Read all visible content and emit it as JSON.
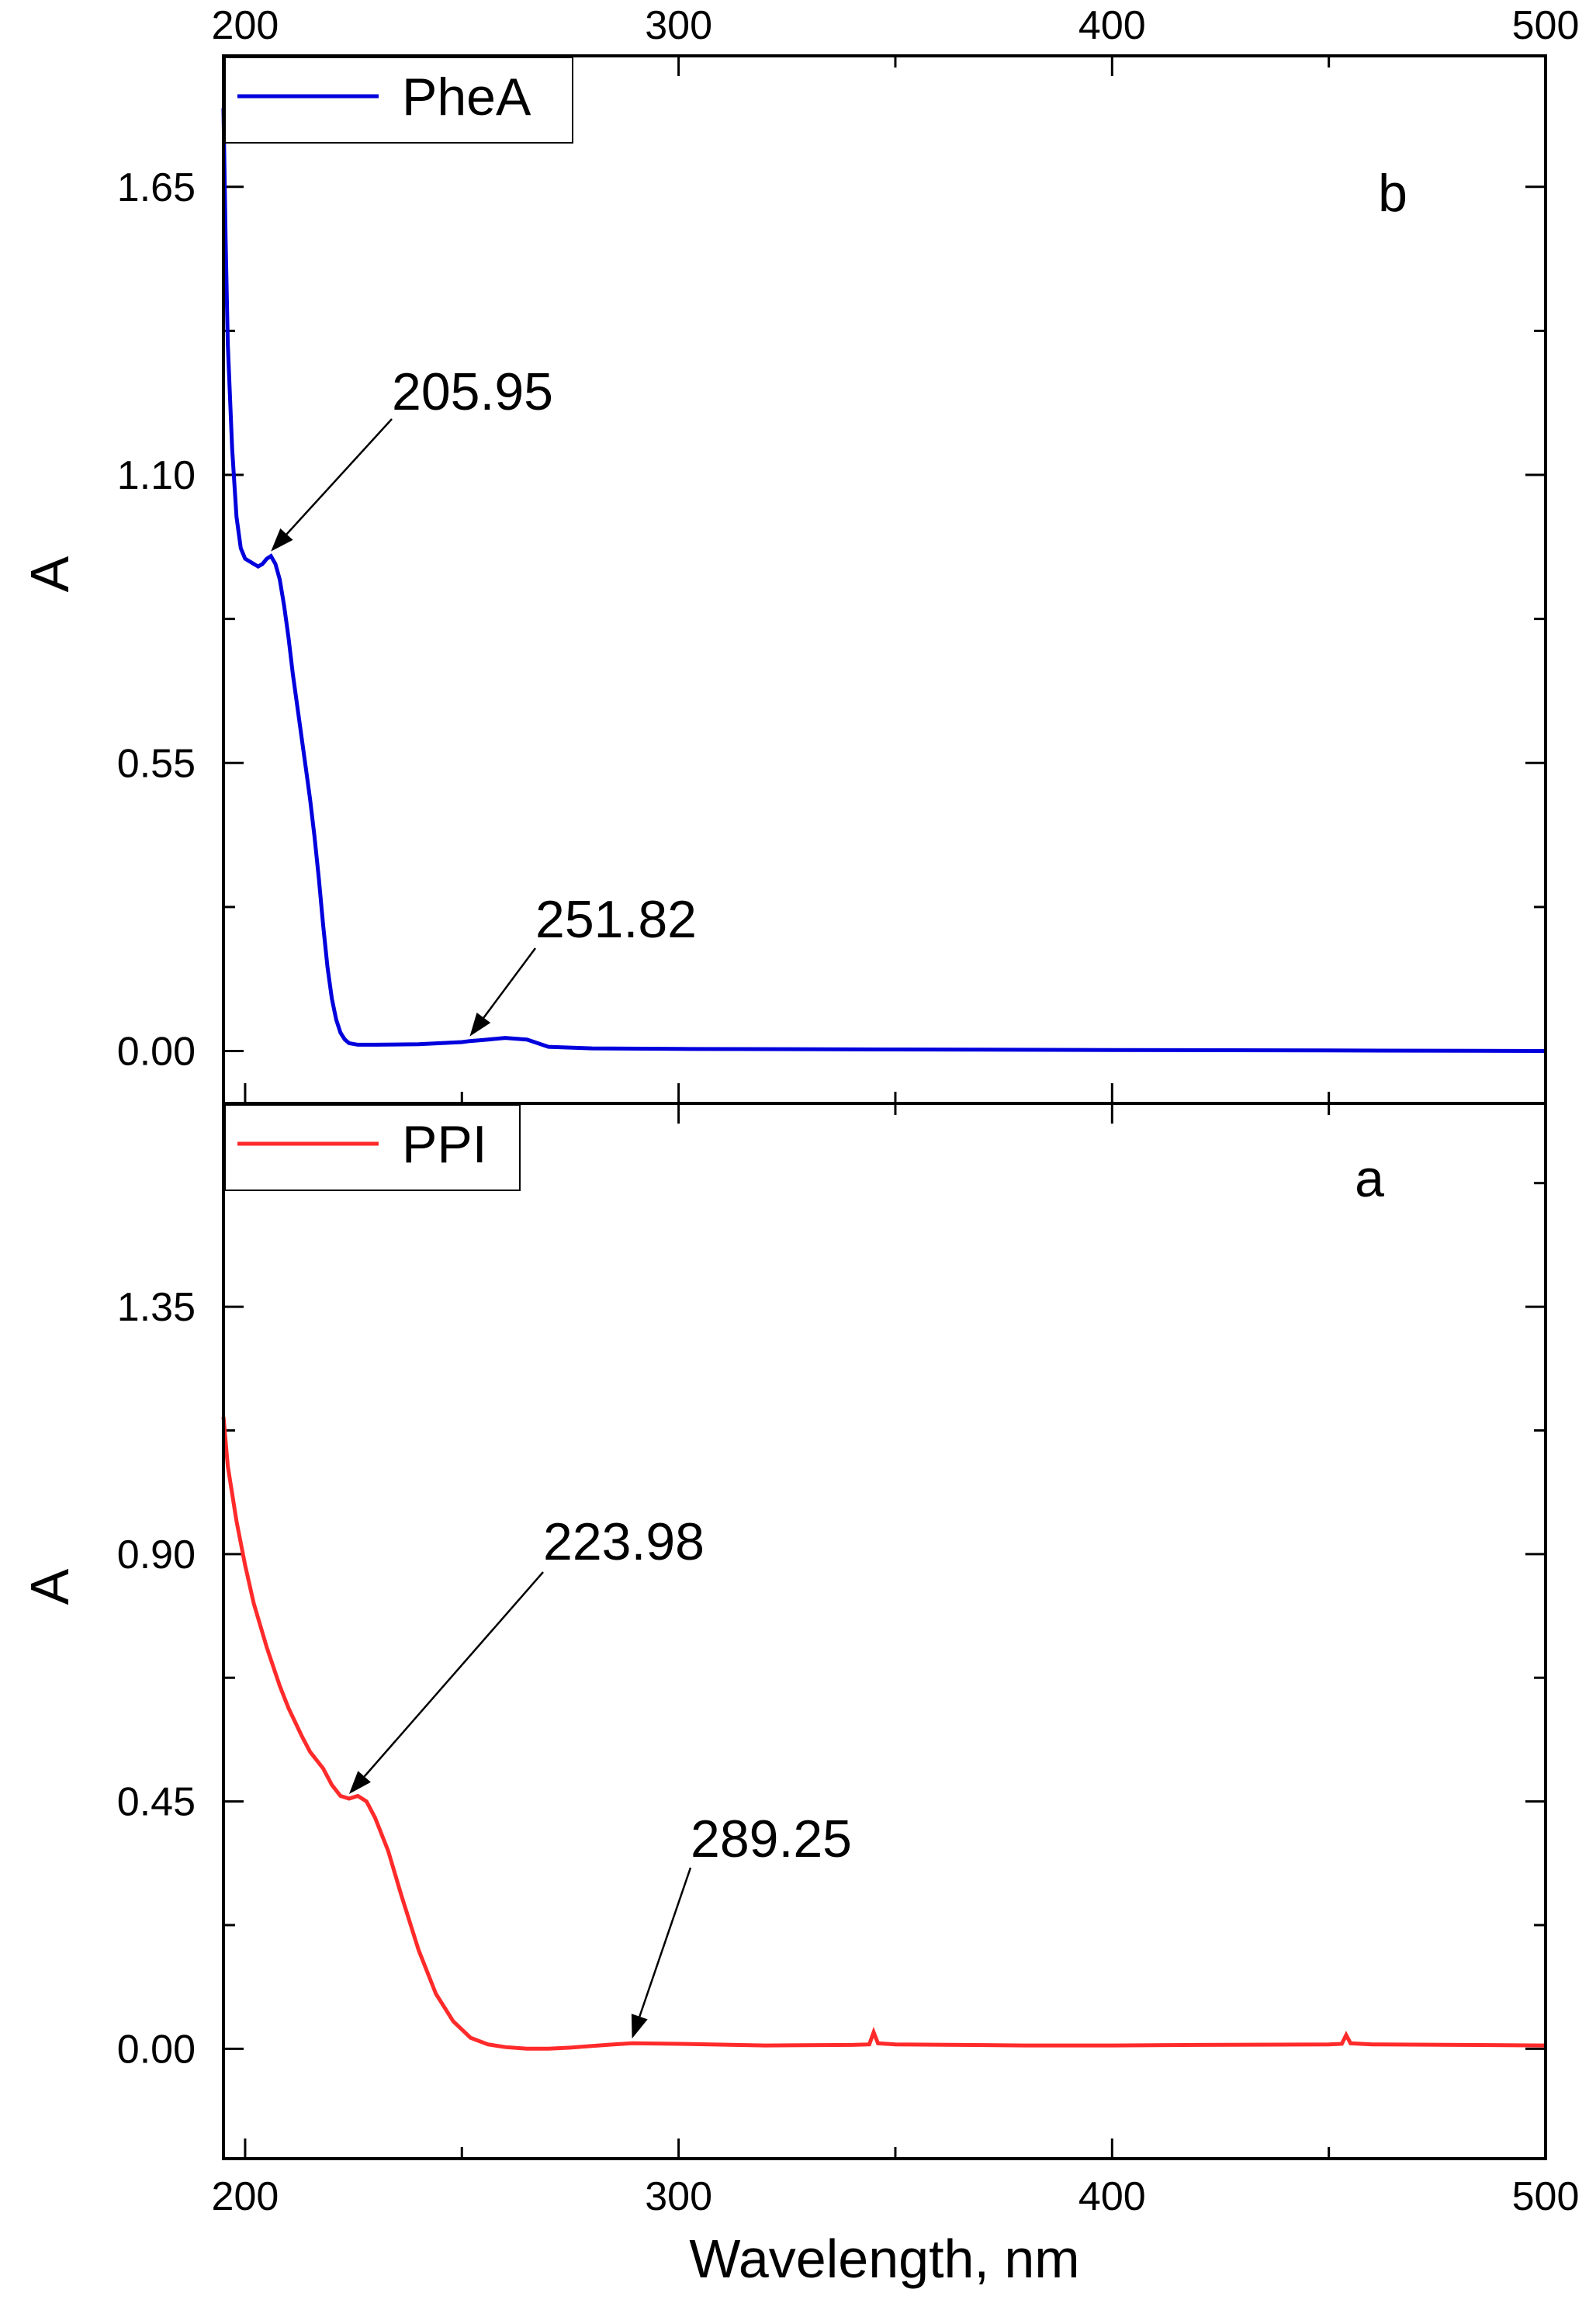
{
  "chart_data": [
    {
      "type": "line",
      "panel_label": "b",
      "title": "",
      "xlabel": "Wavelength, nm",
      "ylabel": "A",
      "xlim": [
        195,
        500
      ],
      "ylim": [
        -0.1,
        1.9
      ],
      "xticks": [
        200,
        300,
        400,
        500
      ],
      "yticks": [
        0.0,
        0.55,
        1.1,
        1.65
      ],
      "ytick_labels": [
        "0.00",
        "0.55",
        "1.10",
        "1.65"
      ],
      "legend_position": "top-left",
      "series": [
        {
          "name": "PheA",
          "color": "#0000dd",
          "x": [
            195,
            195.5,
            196,
            197,
            198,
            199,
            200,
            201,
            202,
            203,
            204,
            205,
            205.95,
            207,
            208,
            209,
            210,
            211,
            212,
            213,
            214,
            215,
            216,
            217,
            218,
            219,
            220,
            221,
            222,
            223,
            224,
            226,
            230,
            240,
            250,
            251.82,
            255,
            260,
            265,
            270,
            280,
            300,
            350,
            400,
            450,
            500
          ],
          "y": [
            1.8,
            1.55,
            1.35,
            1.15,
            1.02,
            0.96,
            0.94,
            0.935,
            0.93,
            0.925,
            0.93,
            0.94,
            0.945,
            0.93,
            0.9,
            0.85,
            0.79,
            0.72,
            0.66,
            0.6,
            0.54,
            0.48,
            0.41,
            0.33,
            0.24,
            0.16,
            0.1,
            0.06,
            0.035,
            0.022,
            0.015,
            0.012,
            0.012,
            0.013,
            0.017,
            0.019,
            0.021,
            0.025,
            0.022,
            0.008,
            0.005,
            0.004,
            0.003,
            0.002,
            0.001,
            0.0
          ]
        }
      ],
      "annotations": [
        {
          "text": "205.95",
          "x": 205.95,
          "y": 0.945
        },
        {
          "text": "251.82",
          "x": 251.82,
          "y": 0.019
        }
      ]
    },
    {
      "type": "line",
      "panel_label": "a",
      "title": "",
      "xlabel": "Wavelength, nm",
      "ylabel": "A",
      "xlim": [
        195,
        500
      ],
      "ylim": [
        -0.2,
        1.72
      ],
      "xticks": [
        200,
        300,
        400,
        500
      ],
      "yticks": [
        0.0,
        0.45,
        0.9,
        1.35
      ],
      "ytick_labels": [
        "0.00",
        "0.45",
        "0.90",
        "1.35"
      ],
      "legend_position": "top-left",
      "series": [
        {
          "name": "PPI",
          "color": "#ff2a2a",
          "x": [
            195,
            196,
            198,
            200,
            202,
            205,
            208,
            210,
            213,
            215,
            218,
            220,
            222,
            223.98,
            226,
            228,
            230,
            233,
            236,
            240,
            244,
            248,
            252,
            256,
            260,
            265,
            270,
            275,
            280,
            285,
            289.25,
            300,
            320,
            340,
            344,
            345,
            346,
            350,
            380,
            400,
            420,
            450,
            453,
            454,
            455,
            460,
            480,
            500
          ],
          "y": [
            1.15,
            1.06,
            0.96,
            0.88,
            0.81,
            0.73,
            0.66,
            0.62,
            0.57,
            0.54,
            0.51,
            0.48,
            0.46,
            0.455,
            0.46,
            0.45,
            0.42,
            0.36,
            0.28,
            0.18,
            0.1,
            0.05,
            0.02,
            0.008,
            0.003,
            0.0,
            0.0,
            0.002,
            0.005,
            0.008,
            0.01,
            0.009,
            0.006,
            0.007,
            0.008,
            0.03,
            0.01,
            0.008,
            0.006,
            0.006,
            0.007,
            0.008,
            0.009,
            0.025,
            0.01,
            0.008,
            0.007,
            0.006
          ]
        }
      ],
      "annotations": [
        {
          "text": "223.98",
          "x": 223.98,
          "y": 0.455
        },
        {
          "text": "289.25",
          "x": 289.25,
          "y": 0.01
        }
      ]
    }
  ]
}
